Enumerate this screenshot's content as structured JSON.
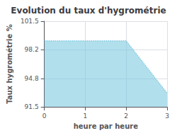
{
  "chart_data": {
    "type": "area",
    "title": "Evolution du taux d'hygrométrie",
    "xlabel": "heure par heure",
    "ylabel": "Taux hygrométrie %",
    "x": [
      0,
      1,
      2,
      3
    ],
    "values": [
      99.2,
      99.2,
      99.2,
      93.1
    ],
    "color": "#7ecae0",
    "line_style": "dotted",
    "xlim": [
      0,
      3
    ],
    "xticks": [
      0,
      1,
      2,
      3
    ],
    "ylim": [
      91.5,
      101.5
    ],
    "yticks": [
      91.5,
      94.8,
      98.2,
      101.5
    ],
    "grid": true
  }
}
